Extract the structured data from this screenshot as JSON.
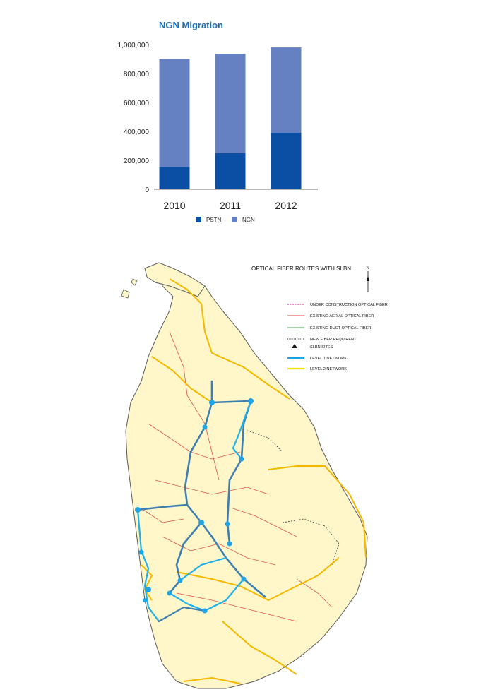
{
  "chart_data": {
    "type": "bar",
    "stacked": true,
    "title": "NGN Migration",
    "categories": [
      "2010",
      "2011",
      "2012"
    ],
    "series": [
      {
        "name": "PSTN",
        "values": [
          155000,
          250000,
          390000
        ],
        "color": "#0a4fa3"
      },
      {
        "name": "NGN",
        "values": [
          745000,
          685000,
          590000
        ],
        "color": "#6581c2"
      }
    ],
    "yticks": [
      "0",
      "200,000",
      "400,000",
      "600,000",
      "800,000",
      "1,000,000"
    ],
    "ylim": [
      0,
      1000000
    ],
    "legend_position": "bottom"
  },
  "map": {
    "title": "OPTICAL FIBER ROUTES WITH SLBN",
    "north_label": "N",
    "legend": [
      {
        "label": "UNDER CONSTRUCTION OPTICAL FIBER",
        "style": "dashed",
        "color": "#e0288a"
      },
      {
        "label": "EXISTING  AERIAL OPTICAL FIBER",
        "style": "solid",
        "color": "#e53935"
      },
      {
        "label": "EXISTING DUCT OPTICAL FIBER",
        "style": "solid",
        "color": "#43a047"
      },
      {
        "label": "NEW FIBER REQUIRENT",
        "style": "dotted",
        "color": "#111111"
      },
      {
        "label": "SLBN SITES",
        "style": "triangle",
        "color": "#111111"
      },
      {
        "label": "LEVEL  1 NETWORK",
        "style": "solid-thick",
        "color": "#1aa3e8"
      },
      {
        "label": "LEVEL  2 NETWORK",
        "style": "solid-thick",
        "color": "#f2e600"
      }
    ]
  }
}
